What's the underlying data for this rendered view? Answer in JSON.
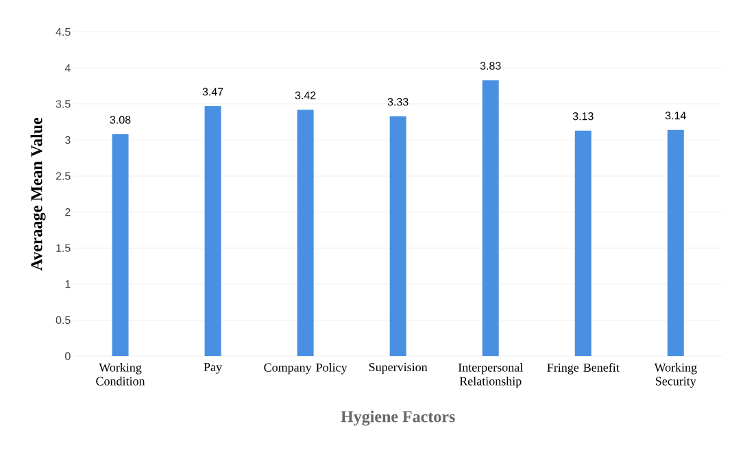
{
  "chart_data": {
    "type": "bar",
    "xlabel": "Hygiene Factors",
    "ylabel": "Averaage Mean Value",
    "categories": [
      "Working Condition",
      "Pay",
      "Company Policy",
      "Supervision",
      "Interpersonal Relationship",
      "Fringe Benefit",
      "Working Security"
    ],
    "values": [
      3.08,
      3.47,
      3.42,
      3.33,
      3.83,
      3.13,
      3.14
    ],
    "value_labels": [
      "3.08",
      "3.47",
      "3.42",
      "3.33",
      "3.83",
      "3.13",
      "3.14"
    ],
    "color": "#4a90e2",
    "ylim": [
      0,
      4.5
    ],
    "yticks": [
      0,
      0.5,
      1,
      1.5,
      2,
      2.5,
      3,
      3.5,
      4,
      4.5
    ],
    "grid": "y"
  }
}
